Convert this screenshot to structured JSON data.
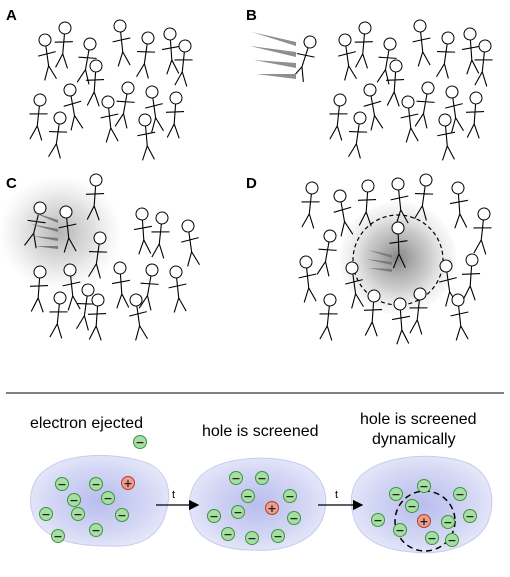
{
  "panels": [
    {
      "id": "A",
      "label": "A"
    },
    {
      "id": "B",
      "label": "B"
    },
    {
      "id": "C",
      "label": "C"
    },
    {
      "id": "D",
      "label": "D"
    }
  ],
  "bottom": {
    "captions": [
      "electron ejected",
      "hole is screened",
      "hole is screened",
      "dynamically"
    ],
    "arrow_labels": [
      "t",
      "t"
    ],
    "electron_symbol": "−",
    "hole_symbol": "+"
  },
  "colors": {
    "blob": "#d6d8f3",
    "electron_fill": "#a7dea3",
    "electron_stroke": "#3d9440",
    "hole_fill": "#ef9d88",
    "hole_stroke": "#b0402c"
  }
}
